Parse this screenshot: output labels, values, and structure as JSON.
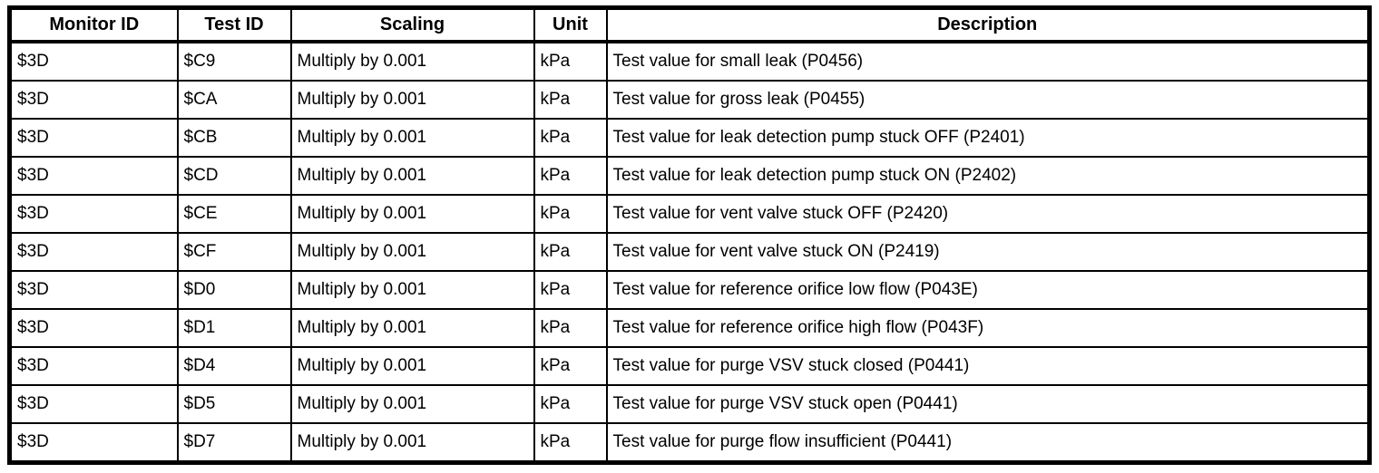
{
  "colors": {
    "background": "#ffffff",
    "border": "#000000",
    "text": "#000000"
  },
  "table": {
    "headers": [
      "Monitor ID",
      "Test ID",
      "Scaling",
      "Unit",
      "Description"
    ],
    "rows": [
      [
        "$3D",
        "$C9",
        "Multiply by 0.001",
        "kPa",
        "Test value for small leak (P0456)"
      ],
      [
        "$3D",
        "$CA",
        "Multiply by 0.001",
        "kPa",
        "Test value for gross leak (P0455)"
      ],
      [
        "$3D",
        "$CB",
        "Multiply by 0.001",
        "kPa",
        "Test value for leak detection pump stuck OFF (P2401)"
      ],
      [
        "$3D",
        "$CD",
        "Multiply by 0.001",
        "kPa",
        "Test value for leak detection pump stuck ON (P2402)"
      ],
      [
        "$3D",
        "$CE",
        "Multiply by 0.001",
        "kPa",
        "Test value for vent valve stuck OFF (P2420)"
      ],
      [
        "$3D",
        "$CF",
        "Multiply by 0.001",
        "kPa",
        "Test value for vent valve stuck ON (P2419)"
      ],
      [
        "$3D",
        "$D0",
        "Multiply by 0.001",
        "kPa",
        "Test value for reference orifice low flow (P043E)"
      ],
      [
        "$3D",
        "$D1",
        "Multiply by 0.001",
        "kPa",
        "Test value for reference orifice high flow (P043F)"
      ],
      [
        "$3D",
        "$D4",
        "Multiply by 0.001",
        "kPa",
        "Test value for purge VSV stuck closed (P0441)"
      ],
      [
        "$3D",
        "$D5",
        "Multiply by 0.001",
        "kPa",
        "Test value for purge VSV stuck open (P0441)"
      ],
      [
        "$3D",
        "$D7",
        "Multiply by 0.001",
        "kPa",
        "Test value for purge flow insufficient (P0441)"
      ]
    ],
    "column_keys": [
      "monitor-id",
      "test-id",
      "scaling",
      "unit",
      "description"
    ]
  }
}
